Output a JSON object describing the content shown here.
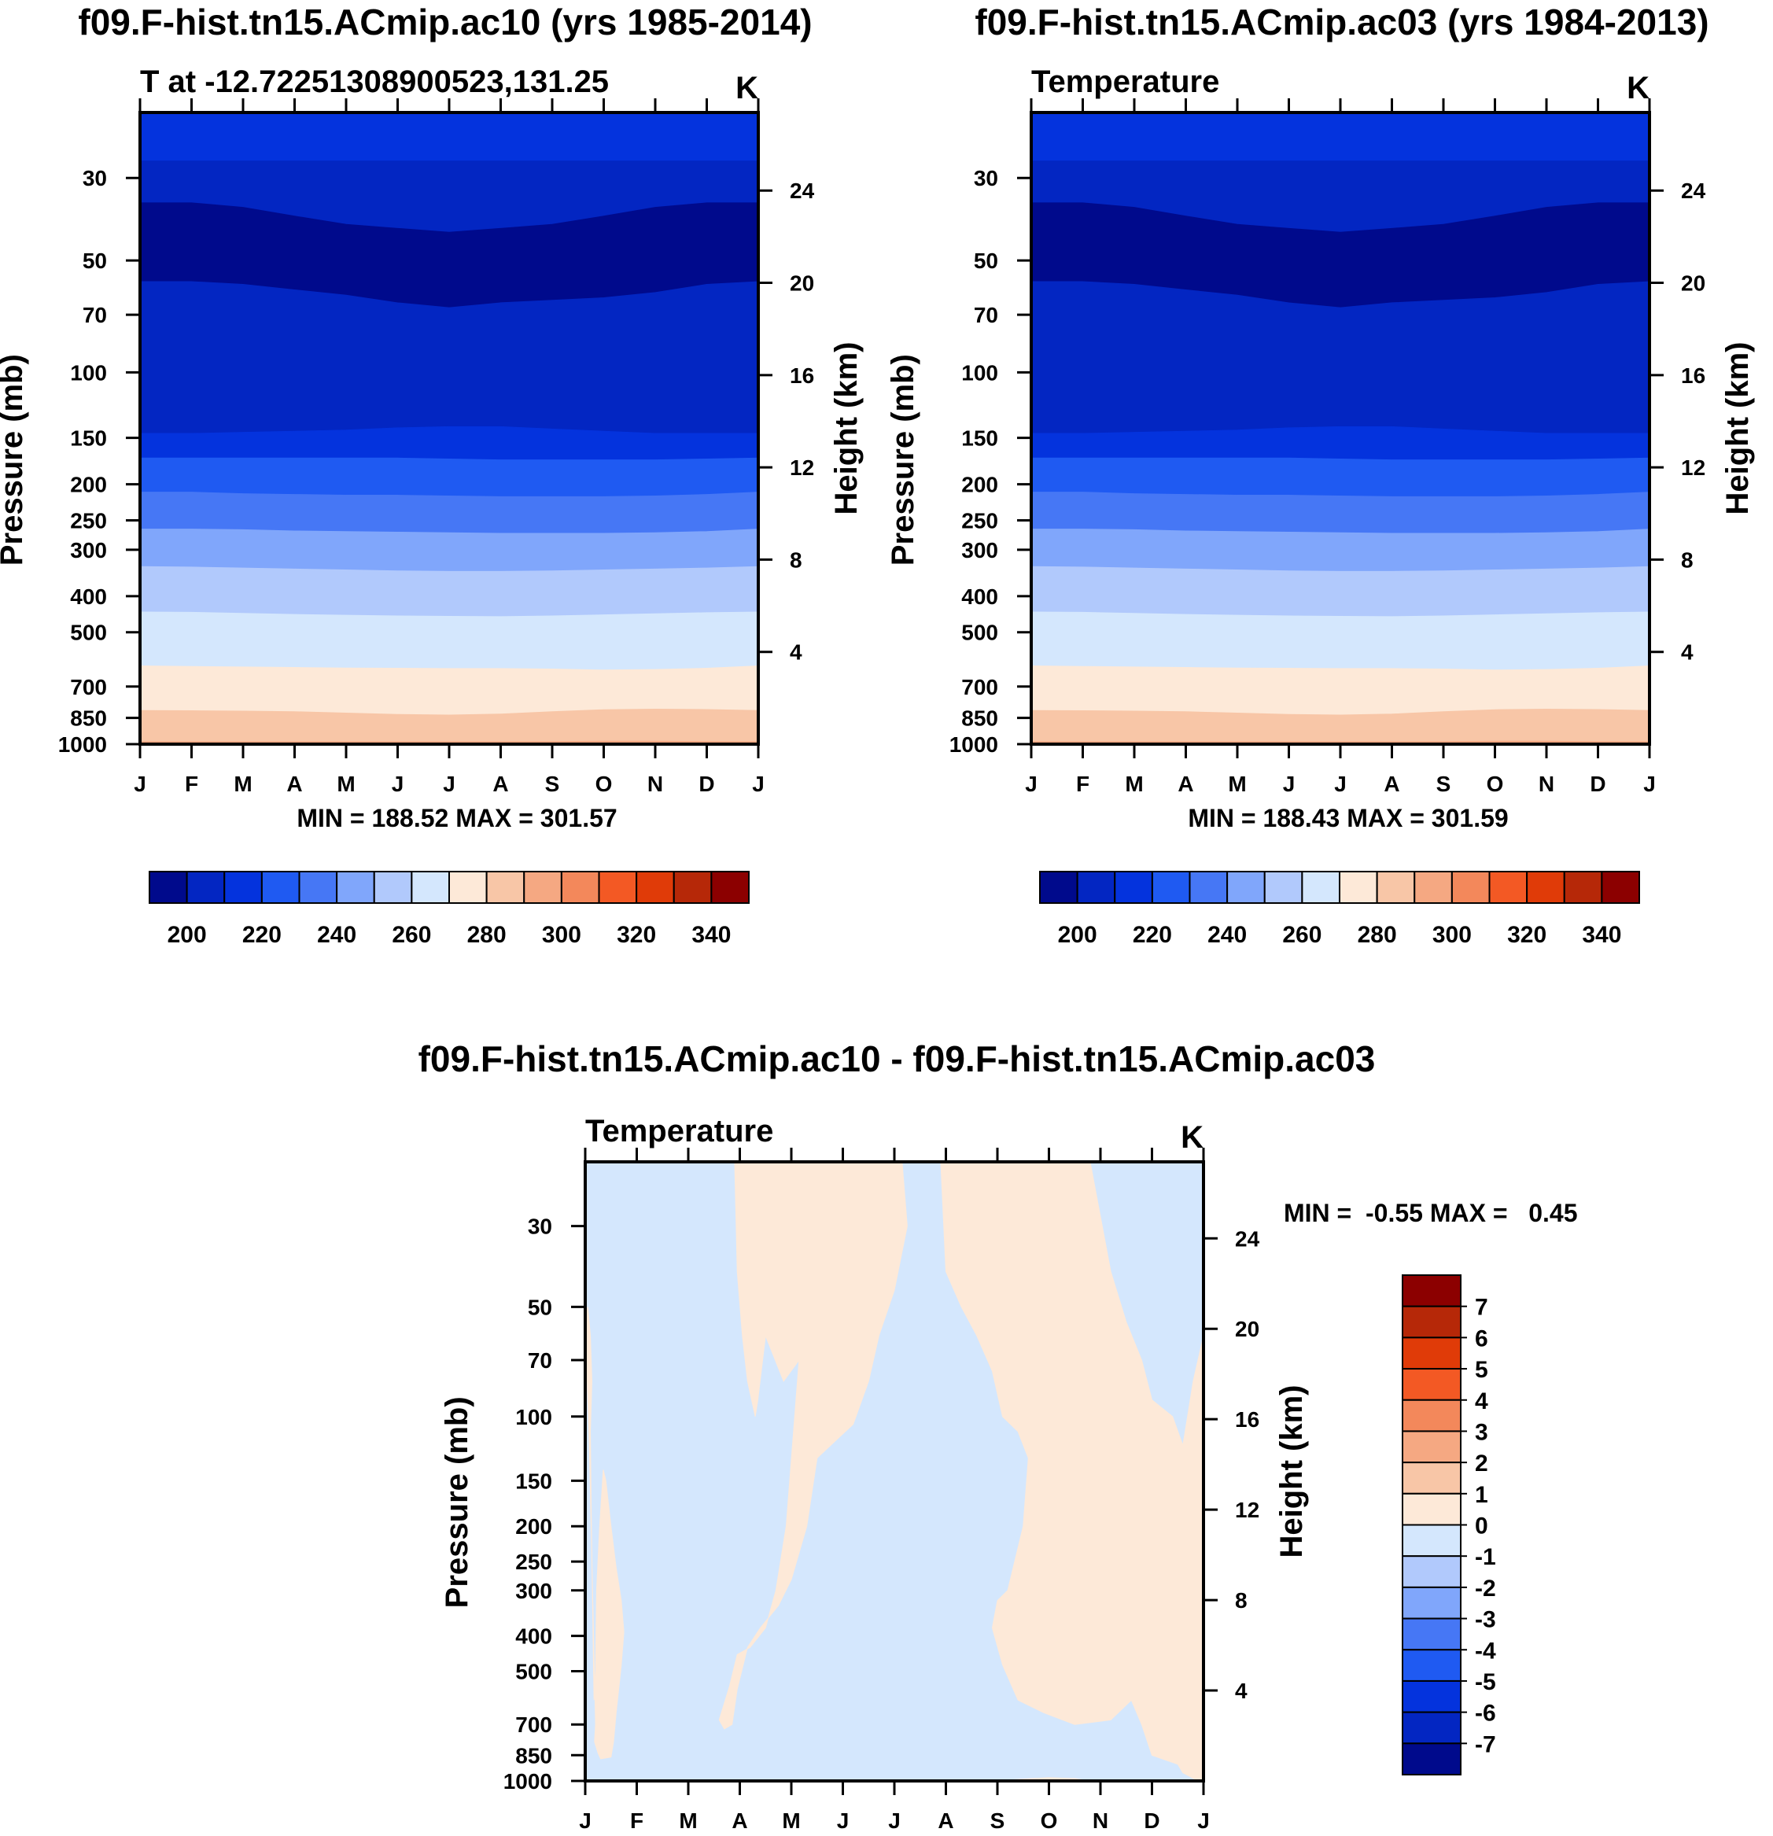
{
  "figure": {
    "top_left_title": "f09.F-hist.tn15.ACmip.ac10 (yrs 1985-2014)",
    "top_right_title": "f09.F-hist.tn15.ACmip.ac03 (yrs 1984-2013)",
    "bottom_title": "f09.F-hist.tn15.ACmip.ac10 - f09.F-hist.tn15.ACmip.ac03"
  },
  "chart_data": [
    {
      "id": "p1",
      "type": "contour",
      "title": "T at -12.72251308900523,131.25",
      "units": "K",
      "xlabel": "",
      "ylabel": "Pressure (mb)",
      "ylabel_right": "Height (km)",
      "months": [
        "J",
        "F",
        "M",
        "A",
        "M",
        "J",
        "J",
        "A",
        "S",
        "O",
        "N",
        "D",
        "J"
      ],
      "pressure_ticks": [
        30,
        50,
        70,
        100,
        150,
        200,
        250,
        300,
        400,
        500,
        700,
        850,
        1000
      ],
      "pressure_range": [
        20,
        1000
      ],
      "height_ticks": [
        4,
        8,
        12,
        16,
        20,
        24
      ],
      "stats": "MIN = 188.52 MAX = 301.57",
      "colorbar_labels": [
        "200",
        "220",
        "240",
        "260",
        "280",
        "300",
        "320",
        "340"
      ],
      "level_boundaries_mb": [
        [
          27,
          27,
          27,
          27,
          27,
          27,
          27,
          27,
          27,
          27,
          27,
          27,
          27
        ],
        [
          35,
          35,
          36,
          38,
          40,
          41,
          42,
          41,
          40,
          38,
          36,
          35,
          35
        ],
        [
          57,
          57,
          58,
          60,
          62,
          65,
          67,
          65,
          64,
          63,
          61,
          58,
          57
        ],
        [
          146,
          146,
          145,
          144,
          143,
          141,
          140,
          140,
          142,
          144,
          146,
          146,
          146
        ],
        [
          170,
          170,
          170,
          170,
          170,
          170,
          171,
          172,
          172,
          172,
          172,
          171,
          170
        ],
        [
          210,
          210,
          212,
          213,
          214,
          214,
          215,
          216,
          216,
          216,
          215,
          213,
          210
        ],
        [
          264,
          264,
          265,
          267,
          268,
          269,
          270,
          271,
          271,
          271,
          270,
          268,
          264
        ],
        [
          333,
          334,
          336,
          338,
          340,
          342,
          343,
          343,
          342,
          340,
          338,
          336,
          333
        ],
        [
          441,
          442,
          445,
          448,
          450,
          452,
          453,
          454,
          452,
          449,
          446,
          443,
          441
        ],
        [
          616,
          618,
          620,
          622,
          624,
          625,
          626,
          626,
          628,
          632,
          630,
          625,
          616
        ],
        [
          812,
          813,
          815,
          818,
          825,
          832,
          835,
          830,
          818,
          808,
          805,
          807,
          812
        ],
        [
          985,
          985,
          985,
          985,
          985,
          985,
          985,
          985,
          984,
          982,
          982,
          984,
          985
        ]
      ],
      "level_colors": [
        "#0433dd",
        "#0326c2",
        "#000a8c",
        "#0326c2",
        "#0433dd",
        "#1f5af2",
        "#4677f5",
        "#80a6fb",
        "#b1c9fc",
        "#d4e7fd",
        "#fde9d8",
        "#f8c6a7",
        "#f5a882",
        "#f3885b"
      ]
    },
    {
      "id": "p2",
      "type": "contour",
      "title": "Temperature",
      "units": "K",
      "xlabel": "",
      "ylabel": "Pressure (mb)",
      "ylabel_right": "Height (km)",
      "months": [
        "J",
        "F",
        "M",
        "A",
        "M",
        "J",
        "J",
        "A",
        "S",
        "O",
        "N",
        "D",
        "J"
      ],
      "pressure_ticks": [
        30,
        50,
        70,
        100,
        150,
        200,
        250,
        300,
        400,
        500,
        700,
        850,
        1000
      ],
      "pressure_range": [
        20,
        1000
      ],
      "height_ticks": [
        4,
        8,
        12,
        16,
        20,
        24
      ],
      "stats": "MIN = 188.43 MAX = 301.59",
      "colorbar_labels": [
        "200",
        "220",
        "240",
        "260",
        "280",
        "300",
        "320",
        "340"
      ],
      "level_boundaries_mb": [
        [
          27,
          27,
          27,
          27,
          27,
          27,
          27,
          27,
          27,
          27,
          27,
          27,
          27
        ],
        [
          35,
          35,
          36,
          38,
          40,
          41,
          42,
          41,
          40,
          38,
          36,
          35,
          35
        ],
        [
          57,
          57,
          58,
          60,
          62,
          65,
          67,
          65,
          64,
          63,
          61,
          58,
          57
        ],
        [
          146,
          146,
          145,
          144,
          143,
          141,
          140,
          140,
          142,
          144,
          146,
          146,
          146
        ],
        [
          170,
          170,
          170,
          170,
          170,
          170,
          171,
          172,
          172,
          172,
          172,
          171,
          170
        ],
        [
          210,
          210,
          212,
          213,
          214,
          214,
          215,
          216,
          216,
          216,
          215,
          213,
          210
        ],
        [
          264,
          264,
          265,
          267,
          268,
          269,
          270,
          271,
          271,
          271,
          270,
          268,
          264
        ],
        [
          333,
          334,
          336,
          338,
          340,
          342,
          343,
          343,
          342,
          340,
          338,
          336,
          333
        ],
        [
          441,
          442,
          445,
          448,
          450,
          452,
          453,
          454,
          452,
          449,
          446,
          443,
          441
        ],
        [
          616,
          618,
          620,
          622,
          624,
          625,
          626,
          626,
          628,
          632,
          630,
          625,
          616
        ],
        [
          812,
          813,
          815,
          818,
          825,
          832,
          835,
          830,
          818,
          808,
          805,
          807,
          812
        ],
        [
          985,
          985,
          985,
          985,
          985,
          985,
          985,
          985,
          984,
          982,
          982,
          984,
          985
        ]
      ],
      "level_colors": [
        "#0433dd",
        "#0326c2",
        "#000a8c",
        "#0326c2",
        "#0433dd",
        "#1f5af2",
        "#4677f5",
        "#80a6fb",
        "#b1c9fc",
        "#d4e7fd",
        "#fde9d8",
        "#f8c6a7",
        "#f5a882",
        "#f3885b"
      ]
    },
    {
      "id": "p3",
      "type": "contour",
      "title": "Temperature",
      "units": "K",
      "xlabel": "",
      "ylabel": "Pressure (mb)",
      "ylabel_right": "Height (km)",
      "months": [
        "J",
        "F",
        "M",
        "A",
        "M",
        "J",
        "J",
        "A",
        "S",
        "O",
        "N",
        "D",
        "J"
      ],
      "pressure_ticks": [
        30,
        50,
        70,
        100,
        150,
        200,
        250,
        300,
        400,
        500,
        700,
        850,
        1000
      ],
      "pressure_range": [
        20,
        1000
      ],
      "height_ticks": [
        4,
        8,
        12,
        16,
        20,
        24
      ],
      "stats_label": "MIN =  -0.55 MAX =   0.45",
      "colorbar_labels": [
        "7",
        "6",
        "5",
        "4",
        "3",
        "2",
        "1",
        "0",
        "-1",
        "-2",
        "-3",
        "-4",
        "-5",
        "-6",
        "-7"
      ],
      "background_color": "#d4e7fd",
      "positive_color": "#fde9d8",
      "positive_regions": [
        [
          [
            0,
            55
          ],
          [
            0.08,
            120
          ],
          [
            0.2,
            700
          ],
          [
            0.18,
            780
          ],
          [
            0.25,
            840
          ],
          [
            0.3,
            870
          ],
          [
            0.5,
            860
          ],
          [
            0.55,
            780
          ],
          [
            0.6,
            650
          ],
          [
            0.65,
            560
          ],
          [
            0.7,
            480
          ],
          [
            0.75,
            390
          ],
          [
            0.7,
            320
          ],
          [
            0.6,
            260
          ],
          [
            0.5,
            200
          ],
          [
            0.4,
            150
          ],
          [
            0.35,
            140
          ],
          [
            0.28,
            200
          ],
          [
            0.22,
            300
          ],
          [
            0.2,
            500
          ],
          [
            0.17,
            600
          ],
          [
            0.12,
            200
          ],
          [
            0.1,
            110
          ],
          [
            0.13,
            80
          ],
          [
            0.1,
            60
          ],
          [
            0.05,
            50
          ]
        ],
        [
          [
            2.9,
            20
          ],
          [
            2.95,
            40
          ],
          [
            3.05,
            60
          ],
          [
            3.15,
            80
          ],
          [
            3.3,
            100
          ],
          [
            3.35,
            90
          ],
          [
            3.5,
            60
          ],
          [
            3.85,
            80
          ],
          [
            4.15,
            70
          ],
          [
            3.9,
            200
          ],
          [
            3.7,
            300
          ],
          [
            3.5,
            380
          ],
          [
            3.2,
            430
          ],
          [
            2.95,
            450
          ],
          [
            2.8,
            550
          ],
          [
            2.6,
            680
          ],
          [
            2.7,
            720
          ],
          [
            2.85,
            700
          ],
          [
            2.95,
            560
          ],
          [
            3.15,
            430
          ],
          [
            3.4,
            380
          ],
          [
            3.75,
            330
          ],
          [
            4.0,
            280
          ],
          [
            4.3,
            200
          ],
          [
            4.5,
            130
          ],
          [
            4.9,
            115
          ],
          [
            5.2,
            105
          ],
          [
            5.5,
            80
          ],
          [
            5.7,
            60
          ],
          [
            6.0,
            45
          ],
          [
            6.25,
            30
          ],
          [
            6.15,
            20
          ]
        ],
        [
          [
            6.9,
            20
          ],
          [
            7.0,
            40
          ],
          [
            7.3,
            50
          ],
          [
            7.6,
            60
          ],
          [
            7.9,
            75
          ],
          [
            8.1,
            100
          ],
          [
            8.4,
            110
          ],
          [
            8.6,
            130
          ],
          [
            8.5,
            200
          ],
          [
            8.2,
            300
          ],
          [
            8.0,
            320
          ],
          [
            7.9,
            380
          ],
          [
            8.1,
            480
          ],
          [
            8.4,
            600
          ],
          [
            8.9,
            650
          ],
          [
            9.5,
            700
          ],
          [
            10.2,
            680
          ],
          [
            10.6,
            600
          ],
          [
            10.8,
            700
          ],
          [
            11.0,
            850
          ],
          [
            11.5,
            900
          ],
          [
            11.6,
            950
          ],
          [
            11.9,
            1000
          ],
          [
            12,
            1000
          ],
          [
            12,
            60
          ],
          [
            11.8,
            80
          ],
          [
            11.6,
            120
          ],
          [
            11.4,
            100
          ],
          [
            11.0,
            90
          ],
          [
            10.8,
            70
          ],
          [
            10.5,
            55
          ],
          [
            10.2,
            40
          ],
          [
            9.8,
            20
          ]
        ],
        [
          [
            8.0,
            1000
          ],
          [
            8.4,
            990
          ],
          [
            9.0,
            980
          ],
          [
            9.5,
            985
          ],
          [
            9.8,
            1000
          ]
        ]
      ]
    }
  ]
}
